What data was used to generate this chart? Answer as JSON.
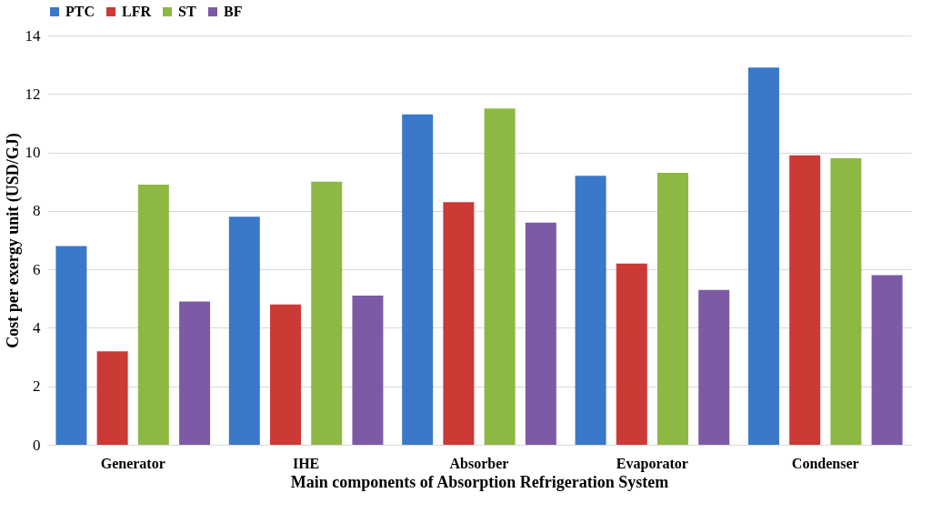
{
  "chart_data": {
    "type": "bar",
    "xlabel": "Main components of Absorption Refrigeration System",
    "ylabel": "Cost per exergy unit (USD/GJ)",
    "categories": [
      "Generator",
      "IHE",
      "Absorber",
      "Evaporator",
      "Condenser"
    ],
    "series": [
      {
        "name": "PTC",
        "color": "#3a78c9",
        "values": [
          6.8,
          7.8,
          11.3,
          9.2,
          12.9
        ]
      },
      {
        "name": "LFR",
        "color": "#cc3a36",
        "values": [
          3.2,
          4.8,
          8.3,
          6.2,
          9.9
        ]
      },
      {
        "name": "ST",
        "color": "#8db843",
        "values": [
          8.9,
          9.0,
          11.5,
          9.3,
          9.8
        ]
      },
      {
        "name": "BF",
        "color": "#7d5aa6",
        "values": [
          4.9,
          5.1,
          7.6,
          5.3,
          5.8
        ]
      }
    ],
    "ylim": [
      0,
      14
    ],
    "yticks": [
      0,
      2,
      4,
      6,
      8,
      10,
      12,
      14
    ],
    "grid": "y",
    "legend": "top"
  }
}
